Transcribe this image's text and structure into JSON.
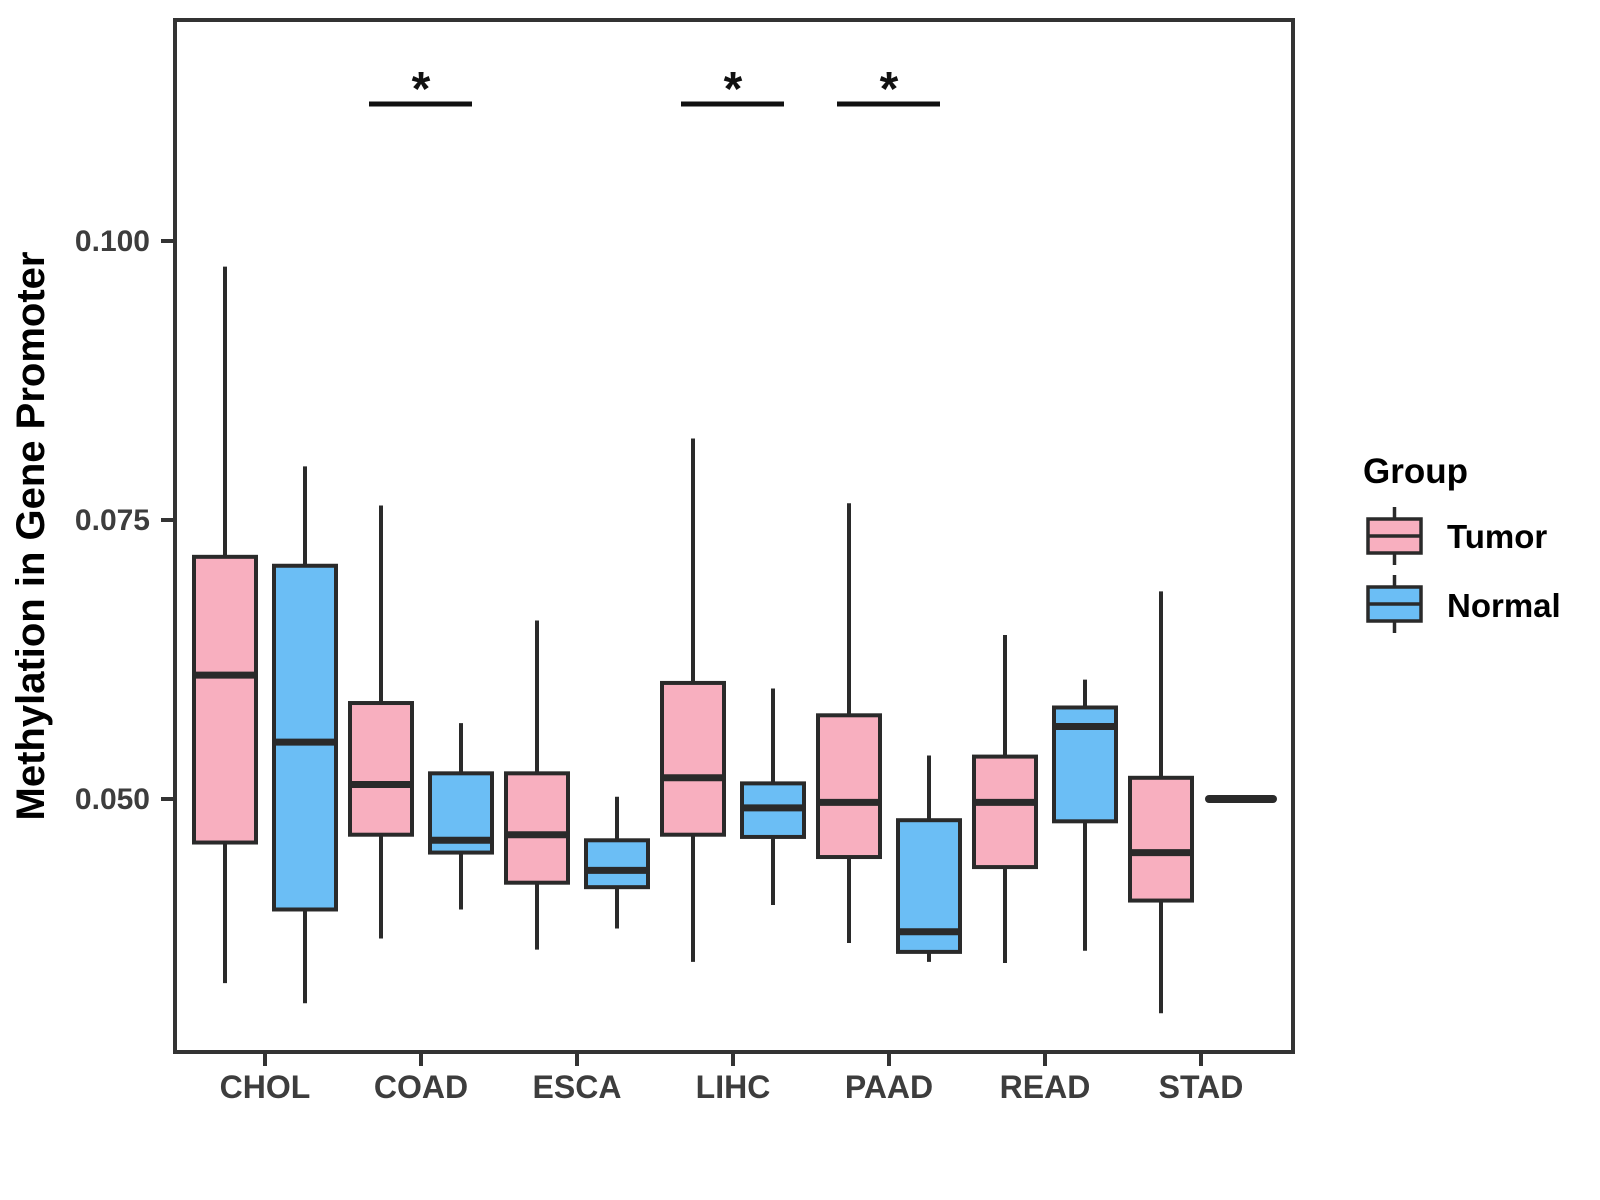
{
  "chart_data": {
    "type": "boxplot",
    "title": "",
    "xlabel": "",
    "ylabel": "Methylation in Gene Promoter",
    "categories": [
      "CHOL",
      "COAD",
      "ESCA",
      "LIHC",
      "PAAD",
      "READ",
      "STAD"
    ],
    "y_ticks": [
      0.05,
      0.075,
      0.1
    ],
    "y_tick_labels": [
      "0.050",
      "0.075",
      "0.100"
    ],
    "ylim": [
      0.027,
      0.12
    ],
    "grid": "off",
    "legend_position": "right",
    "legend": {
      "title": "Group",
      "entries": [
        {
          "label": "Tumor",
          "color": "#F8AFBF"
        },
        {
          "label": "Normal",
          "color": "#6BBEF5"
        }
      ]
    },
    "series": [
      {
        "name": "Tumor",
        "color": "#F8AFBF",
        "boxes": [
          {
            "category": "CHOL",
            "whisker_low": 0.0335,
            "q1": 0.0461,
            "median": 0.0611,
            "q3": 0.0717,
            "whisker_high": 0.0977
          },
          {
            "category": "COAD",
            "whisker_low": 0.0375,
            "q1": 0.0468,
            "median": 0.0513,
            "q3": 0.0586,
            "whisker_high": 0.0763
          },
          {
            "category": "ESCA",
            "whisker_low": 0.0365,
            "q1": 0.0425,
            "median": 0.0468,
            "q3": 0.0523,
            "whisker_high": 0.066
          },
          {
            "category": "LIHC",
            "whisker_low": 0.0354,
            "q1": 0.0468,
            "median": 0.0519,
            "q3": 0.0604,
            "whisker_high": 0.0823
          },
          {
            "category": "PAAD",
            "whisker_low": 0.0371,
            "q1": 0.0448,
            "median": 0.0497,
            "q3": 0.0575,
            "whisker_high": 0.0765
          },
          {
            "category": "READ",
            "whisker_low": 0.0353,
            "q1": 0.0439,
            "median": 0.0497,
            "q3": 0.0538,
            "whisker_high": 0.0647
          },
          {
            "category": "STAD",
            "whisker_low": 0.0308,
            "q1": 0.0409,
            "median": 0.0452,
            "q3": 0.0519,
            "whisker_high": 0.0686
          }
        ]
      },
      {
        "name": "Normal",
        "color": "#6BBEF5",
        "boxes": [
          {
            "category": "CHOL",
            "whisker_low": 0.0317,
            "q1": 0.0401,
            "median": 0.0551,
            "q3": 0.0709,
            "whisker_high": 0.0798
          },
          {
            "category": "COAD",
            "whisker_low": 0.0401,
            "q1": 0.0452,
            "median": 0.0463,
            "q3": 0.0523,
            "whisker_high": 0.0568
          },
          {
            "category": "ESCA",
            "whisker_low": 0.0384,
            "q1": 0.0421,
            "median": 0.0436,
            "q3": 0.0463,
            "whisker_high": 0.0502
          },
          {
            "category": "LIHC",
            "whisker_low": 0.0405,
            "q1": 0.0466,
            "median": 0.0492,
            "q3": 0.0514,
            "whisker_high": 0.0599
          },
          {
            "category": "PAAD",
            "whisker_low": 0.0354,
            "q1": 0.0363,
            "median": 0.0381,
            "q3": 0.0481,
            "whisker_high": 0.0539
          },
          {
            "category": "READ",
            "whisker_low": 0.0364,
            "q1": 0.048,
            "median": 0.0565,
            "q3": 0.0582,
            "whisker_high": 0.0607
          },
          {
            "category": "STAD",
            "whisker_low": 0.05,
            "q1": 0.05,
            "median": 0.05,
            "q3": 0.05,
            "whisker_high": 0.05
          }
        ]
      }
    ],
    "significance_markers": [
      {
        "category": "COAD",
        "label": "*"
      },
      {
        "category": "LIHC",
        "label": "*"
      },
      {
        "category": "PAAD",
        "label": "*"
      }
    ],
    "colors": {
      "panel_border": "#333333",
      "box_outline": "#2A2A2A",
      "tick_text": "#3D3D3D",
      "title_text": "#000000",
      "background": "#FFFFFF"
    }
  }
}
